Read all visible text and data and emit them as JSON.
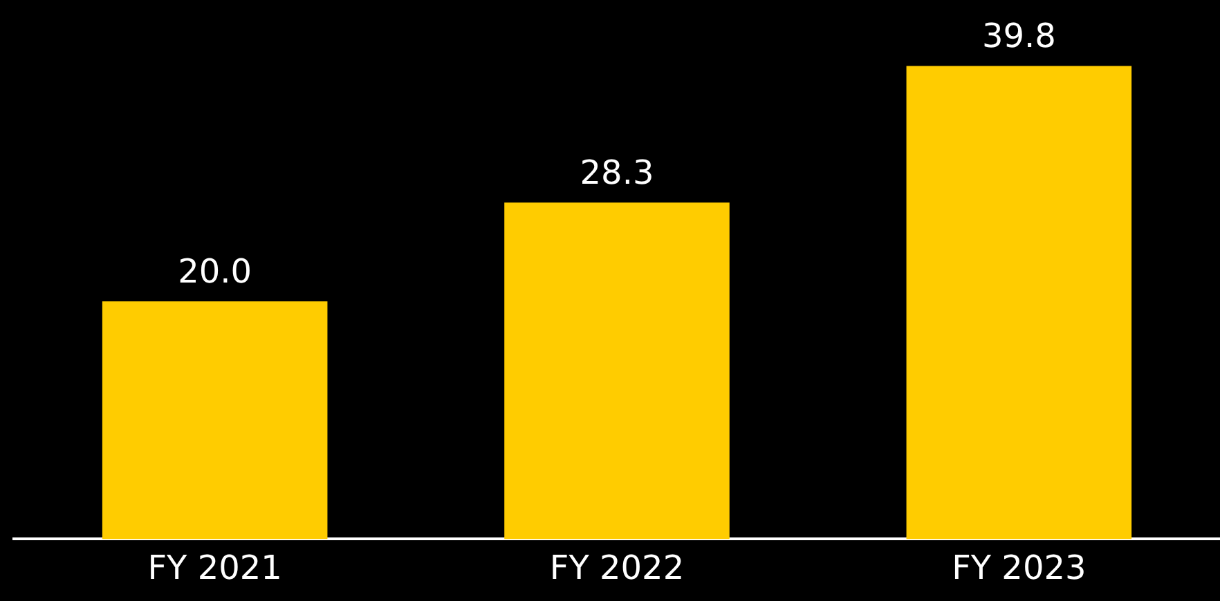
{
  "chart_data": {
    "type": "bar",
    "categories": [
      "FY 2021",
      "FY 2022",
      "FY 2023"
    ],
    "values": [
      20.0,
      28.3,
      39.8
    ],
    "value_labels": [
      "20.0",
      "28.3",
      "39.8"
    ],
    "color": "#ffcc00",
    "tick_labels": "x",
    "grid": false,
    "legend": false
  }
}
